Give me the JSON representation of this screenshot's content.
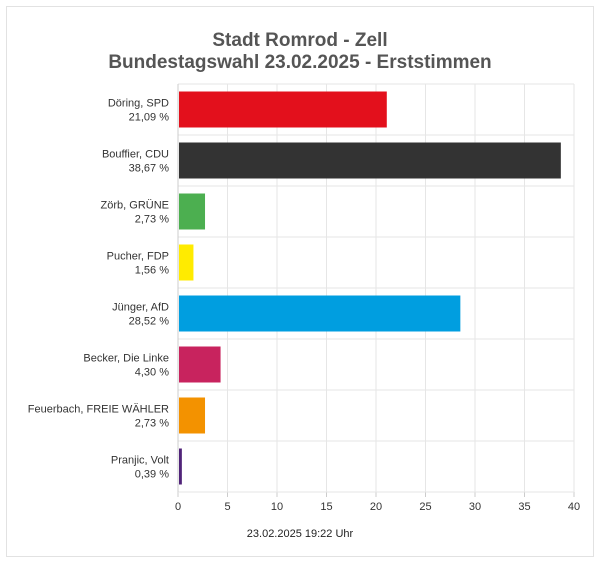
{
  "chart_data": {
    "type": "bar",
    "orientation": "horizontal",
    "title": "Stadt Romrod - Zell",
    "subtitle": "Bundestagswahl 23.02.2025  - Erststimmen",
    "categories": [
      "Döring, SPD",
      "Bouffier, CDU",
      "Zörb, GRÜNE",
      "Pucher, FDP",
      "Jünger, AfD",
      "Becker, Die Linke",
      "Feuerbach, FREIE WÄHLER",
      "Pranjic, Volt"
    ],
    "value_labels": [
      "21,09 %",
      "38,67 %",
      "2,73 %",
      "1,56 %",
      "28,52 %",
      "4,30 %",
      "2,73 %",
      "0,39 %"
    ],
    "values": [
      21.09,
      38.67,
      2.73,
      1.56,
      28.52,
      4.3,
      2.73,
      0.39
    ],
    "colors": [
      "#e3101c",
      "#333333",
      "#4caf50",
      "#ffeb00",
      "#009ee0",
      "#c8235e",
      "#f39200",
      "#502379"
    ],
    "xlim": [
      0,
      40
    ],
    "xticks": [
      "0",
      "5",
      "10",
      "15",
      "20",
      "25",
      "30",
      "35",
      "40"
    ],
    "xlabel": "",
    "ylabel": "",
    "grid": true,
    "footer": "23.02.2025 19:22 Uhr"
  }
}
